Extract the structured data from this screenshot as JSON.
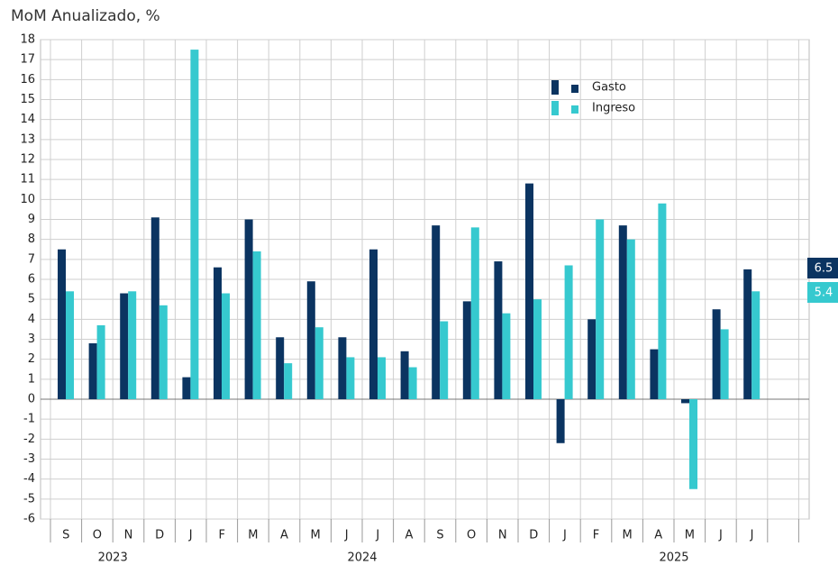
{
  "chart_data": {
    "type": "bar",
    "title": "MoM Anualizado, %",
    "categories": [
      "S",
      "O",
      "N",
      "D",
      "J",
      "F",
      "M",
      "A",
      "M",
      "J",
      "J",
      "A",
      "S",
      "O",
      "N",
      "D",
      "J",
      "F",
      "M",
      "A",
      "M",
      "J",
      "J"
    ],
    "year_labels": [
      "2023",
      "2024",
      "2025"
    ],
    "series": [
      {
        "name": "Gasto",
        "color": "#0b3461",
        "values": [
          7.5,
          2.8,
          5.3,
          9.1,
          1.1,
          6.6,
          9.0,
          3.1,
          5.9,
          3.1,
          7.5,
          2.4,
          8.7,
          4.9,
          6.9,
          10.8,
          -2.2,
          4.0,
          8.7,
          2.5,
          -0.2,
          4.5,
          6.5
        ]
      },
      {
        "name": "Ingreso",
        "color": "#36c9cf",
        "values": [
          5.4,
          3.7,
          5.4,
          4.7,
          17.5,
          5.3,
          7.4,
          1.8,
          3.6,
          2.1,
          2.1,
          1.6,
          3.9,
          8.6,
          4.3,
          5.0,
          6.7,
          9.0,
          8.0,
          9.8,
          -4.5,
          3.5,
          5.4
        ]
      }
    ],
    "ylim": [
      -6,
      18
    ],
    "yticks": [
      -6,
      -5,
      -4,
      -3,
      -2,
      -1,
      0,
      1,
      2,
      3,
      4,
      5,
      6,
      7,
      8,
      9,
      10,
      11,
      12,
      13,
      14,
      15,
      16,
      17,
      18
    ],
    "grid": true,
    "legend": "top-right"
  }
}
